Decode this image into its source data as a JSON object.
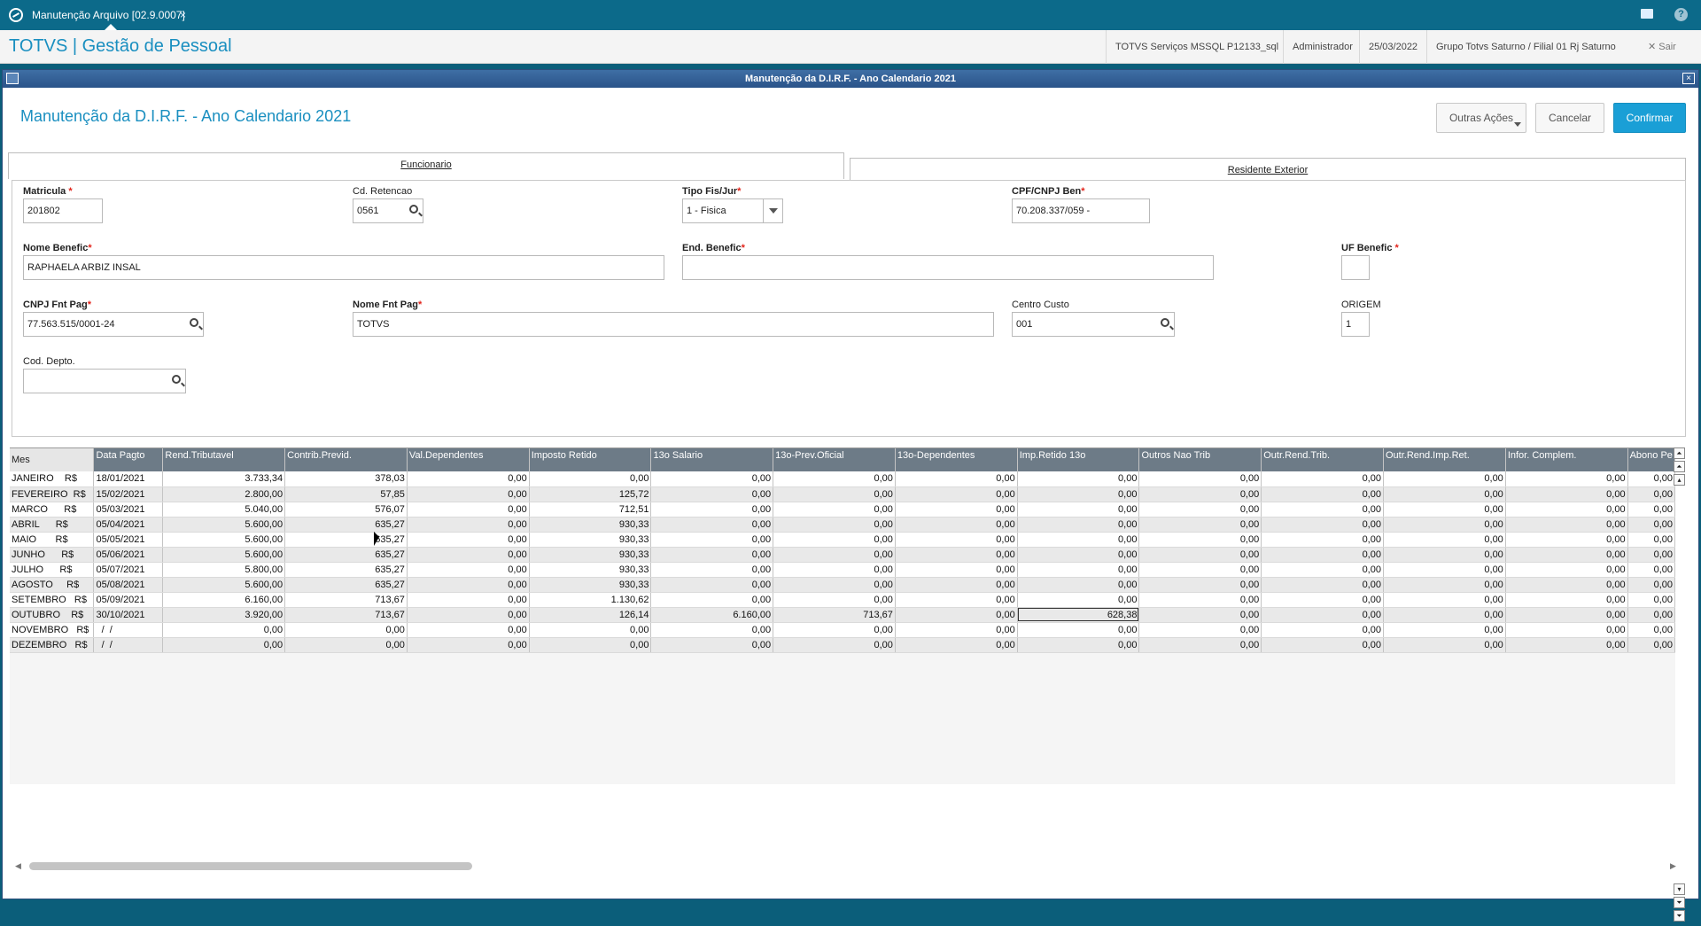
{
  "topbar": {
    "tab_title": "Manutenção Arquivo [02.9.0007]",
    "tab_close": "×"
  },
  "header": {
    "brand": "TOTVS | Gestão de Pessoal",
    "server": "TOTVS Serviços MSSQL P12133_sql",
    "user": "Administrador",
    "date": "25/03/2022",
    "company": "Grupo Totvs Saturno / Filial 01 Rj Saturno",
    "exit": "✕  Sair"
  },
  "window": {
    "title": "Manutenção da D.I.R.F. - Ano Calendario 2021",
    "close": "×",
    "page_title": "Manutenção da D.I.R.F. - Ano Calendario 2021",
    "buttons": {
      "other": "Outras Ações",
      "cancel": "Cancelar",
      "confirm": "Confirmar"
    },
    "tabs": {
      "employee": "Funcionario",
      "resident": "Residente Exterior"
    }
  },
  "form": {
    "matricula": {
      "label": "Matricula",
      "value": "201802"
    },
    "cd_retencao": {
      "label": "Cd. Retencao",
      "value": "0561"
    },
    "tipo": {
      "label": "Tipo Fis/Jur",
      "value": "1 - Fisica"
    },
    "cpf": {
      "label": "CPF/CNPJ Ben",
      "value": "70.208.337/059 -"
    },
    "nome": {
      "label": "Nome Benefic",
      "value": "RAPHAELA ARBIZ INSAL"
    },
    "endereco": {
      "label": "End. Benefic",
      "value": ""
    },
    "uf": {
      "label": "UF Benefic",
      "value": ""
    },
    "cnpj": {
      "label": "CNPJ Fnt Pag",
      "value": "77.563.515/0001-24"
    },
    "nome_fnt": {
      "label": "Nome Fnt Pag",
      "value": "TOTVS"
    },
    "centro": {
      "label": "Centro Custo",
      "value": "001"
    },
    "origem": {
      "label": "ORIGEM",
      "value": "1"
    },
    "depto": {
      "label": "Cod. Depto.",
      "value": ""
    }
  },
  "grid": {
    "headers": [
      "Mes",
      "Data Pagto",
      "Rend.Tributavel",
      "Contrib.Previd.",
      "Val.Dependentes",
      "Imposto Retido",
      "13o  Salario",
      "13o-Prev.Oficial",
      "13o-Dependentes",
      "Imp.Retido 13o",
      "Outros Nao Trib",
      "Outr.Rend.Trib.",
      "Outr.Rend.Imp.Ret.",
      "Infor. Complem.",
      "Abono Pe"
    ],
    "rows": [
      [
        "JANEIRO    R$",
        "18/01/2021",
        "3.733,34",
        "378,03",
        "0,00",
        "0,00",
        "0,00",
        "0,00",
        "0,00",
        "0,00",
        "0,00",
        "0,00",
        "0,00",
        "0,00",
        "0,00"
      ],
      [
        "FEVEREIRO  R$",
        "15/02/2021",
        "2.800,00",
        "57,85",
        "0,00",
        "125,72",
        "0,00",
        "0,00",
        "0,00",
        "0,00",
        "0,00",
        "0,00",
        "0,00",
        "0,00",
        "0,00"
      ],
      [
        "MARCO      R$",
        "05/03/2021",
        "5.040,00",
        "576,07",
        "0,00",
        "712,51",
        "0,00",
        "0,00",
        "0,00",
        "0,00",
        "0,00",
        "0,00",
        "0,00",
        "0,00",
        "0,00"
      ],
      [
        "ABRIL      R$",
        "05/04/2021",
        "5.600,00",
        "635,27",
        "0,00",
        "930,33",
        "0,00",
        "0,00",
        "0,00",
        "0,00",
        "0,00",
        "0,00",
        "0,00",
        "0,00",
        "0,00"
      ],
      [
        "MAIO       R$",
        "05/05/2021",
        "5.600,00",
        "635,27",
        "0,00",
        "930,33",
        "0,00",
        "0,00",
        "0,00",
        "0,00",
        "0,00",
        "0,00",
        "0,00",
        "0,00",
        "0,00"
      ],
      [
        "JUNHO      R$",
        "05/06/2021",
        "5.600,00",
        "635,27",
        "0,00",
        "930,33",
        "0,00",
        "0,00",
        "0,00",
        "0,00",
        "0,00",
        "0,00",
        "0,00",
        "0,00",
        "0,00"
      ],
      [
        "JULHO      R$",
        "05/07/2021",
        "5.800,00",
        "635,27",
        "0,00",
        "930,33",
        "0,00",
        "0,00",
        "0,00",
        "0,00",
        "0,00",
        "0,00",
        "0,00",
        "0,00",
        "0,00"
      ],
      [
        "AGOSTO     R$",
        "05/08/2021",
        "5.600,00",
        "635,27",
        "0,00",
        "930,33",
        "0,00",
        "0,00",
        "0,00",
        "0,00",
        "0,00",
        "0,00",
        "0,00",
        "0,00",
        "0,00"
      ],
      [
        "SETEMBRO   R$",
        "05/09/2021",
        "6.160,00",
        "713,67",
        "0,00",
        "1.130,62",
        "0,00",
        "0,00",
        "0,00",
        "0,00",
        "0,00",
        "0,00",
        "0,00",
        "0,00",
        "0,00"
      ],
      [
        "OUTUBRO    R$",
        "30/10/2021",
        "3.920,00",
        "713,67",
        "0,00",
        "126,14",
        "6.160,00",
        "713,67",
        "0,00",
        "628,38",
        "0,00",
        "0,00",
        "0,00",
        "0,00",
        "0,00"
      ],
      [
        "NOVEMBRO   R$",
        "  /  /",
        "0,00",
        "0,00",
        "0,00",
        "0,00",
        "0,00",
        "0,00",
        "0,00",
        "0,00",
        "0,00",
        "0,00",
        "0,00",
        "0,00",
        "0,00"
      ],
      [
        "DEZEMBRO   R$",
        "  /  /",
        "0,00",
        "0,00",
        "0,00",
        "0,00",
        "0,00",
        "0,00",
        "0,00",
        "0,00",
        "0,00",
        "0,00",
        "0,00",
        "0,00",
        "0,00"
      ]
    ]
  }
}
